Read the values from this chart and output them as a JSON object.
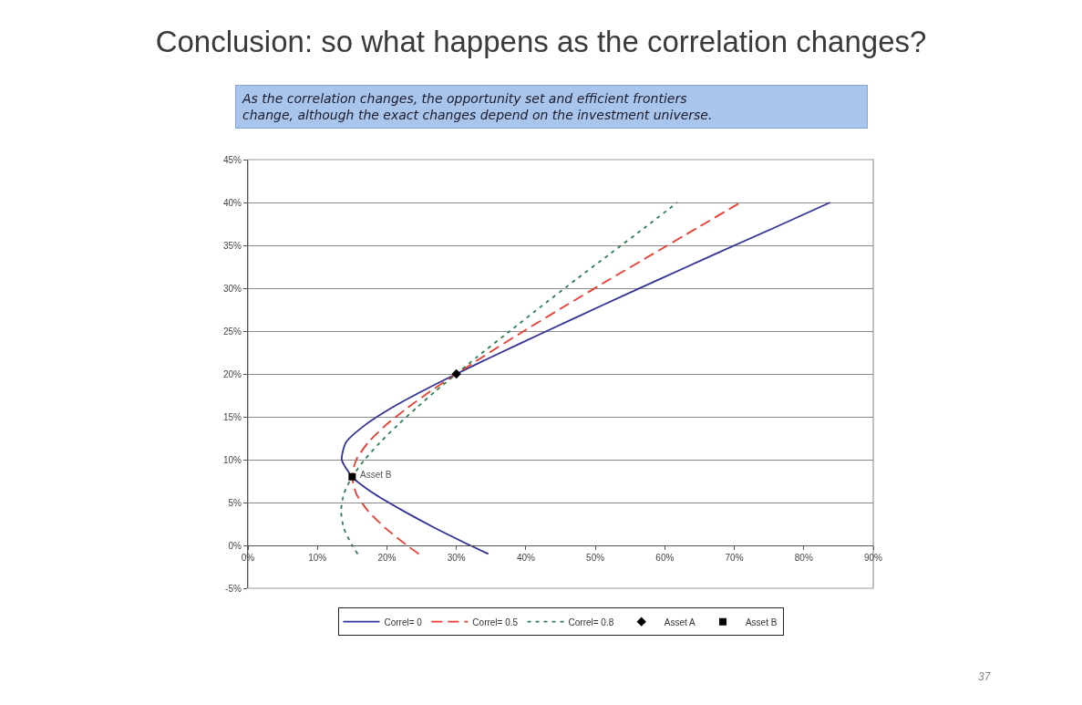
{
  "chart_data": {
    "type": "line",
    "title": "Conclusion: so what happens as the correlation changes?",
    "subtitle": "As the correlation changes, the opportunity set and efficient frontiers change, although the exact changes depend on the investment universe.",
    "xlim": [
      0,
      90
    ],
    "xticks": [
      {
        "value": 0,
        "label": "0%"
      },
      {
        "value": 10,
        "label": "10%"
      },
      {
        "value": 20,
        "label": "20%"
      },
      {
        "value": 30,
        "label": "30%"
      },
      {
        "value": 40,
        "label": "40%"
      },
      {
        "value": 50,
        "label": "50%"
      },
      {
        "value": 60,
        "label": "60%"
      },
      {
        "value": 70,
        "label": "70%"
      },
      {
        "value": 80,
        "label": "80%"
      },
      {
        "value": 90,
        "label": "90%"
      }
    ],
    "ylim": [
      -5,
      45
    ],
    "yticks": [
      {
        "value": -5,
        "label": "-5%"
      },
      {
        "value": 0,
        "label": "0%"
      },
      {
        "value": 5,
        "label": "5%"
      },
      {
        "value": 10,
        "label": "10%"
      },
      {
        "value": 15,
        "label": "15%"
      },
      {
        "value": 20,
        "label": "20%"
      },
      {
        "value": 25,
        "label": "25%"
      },
      {
        "value": 30,
        "label": "30%"
      },
      {
        "value": 35,
        "label": "35%"
      },
      {
        "value": 40,
        "label": "40%"
      },
      {
        "value": 45,
        "label": "45%"
      }
    ],
    "grid": "y",
    "legend": "bottom",
    "series": [
      {
        "name": "Correl= 0",
        "color": "#333399",
        "line_style": "solid",
        "marker": "none",
        "x": [
          34.6,
          32.0,
          27.0,
          22.4,
          18.2,
          15.0,
          13.5,
          14.1,
          16.8,
          20.6,
          25.1,
          30.0,
          35.1,
          43.0,
          51.0,
          59.1,
          67.3,
          75.6,
          83.8
        ],
        "values": [
          -1,
          0,
          2,
          4,
          6,
          8,
          10,
          12,
          14,
          16,
          18,
          20,
          22,
          25,
          28,
          31,
          34,
          37,
          40
        ]
      },
      {
        "name": "Correl= 0.5",
        "color": "#ee3b2f",
        "line_style": "dashed",
        "marker": "none",
        "x": [
          24.6,
          22.9,
          19.8,
          17.3,
          15.6,
          15.0,
          15.6,
          17.3,
          19.8,
          22.9,
          26.3,
          30.0,
          33.8,
          39.7,
          45.8,
          52.0,
          58.3,
          64.6,
          70.9
        ],
        "values": [
          -1,
          0,
          2,
          4,
          6,
          8,
          10,
          12,
          14,
          16,
          18,
          20,
          22,
          25,
          28,
          31,
          34,
          37,
          40
        ]
      },
      {
        "name": "Correl= 0.8",
        "color": "#2e7d4f",
        "line_style": "dotted",
        "marker": "none",
        "x": [
          15.8,
          15.0,
          13.8,
          13.4,
          13.8,
          15.0,
          16.8,
          19.0,
          21.5,
          24.2,
          27.0,
          30.0,
          33.0,
          37.7,
          42.4,
          47.2,
          52.1,
          57.0,
          61.8
        ],
        "values": [
          -1,
          0,
          2,
          4,
          6,
          8,
          10,
          12,
          14,
          16,
          18,
          20,
          22,
          25,
          28,
          31,
          34,
          37,
          40
        ]
      },
      {
        "name": "Asset A",
        "type": "scatter",
        "color": "#000000",
        "marker": "diamond",
        "x": [
          30
        ],
        "values": [
          20
        ]
      },
      {
        "name": "Asset B",
        "type": "scatter",
        "color": "#000000",
        "marker": "square",
        "x": [
          15
        ],
        "values": [
          8
        ]
      }
    ],
    "annotations": [
      {
        "text": "Asset B",
        "x": 15,
        "y": 8
      },
      "37"
    ]
  }
}
